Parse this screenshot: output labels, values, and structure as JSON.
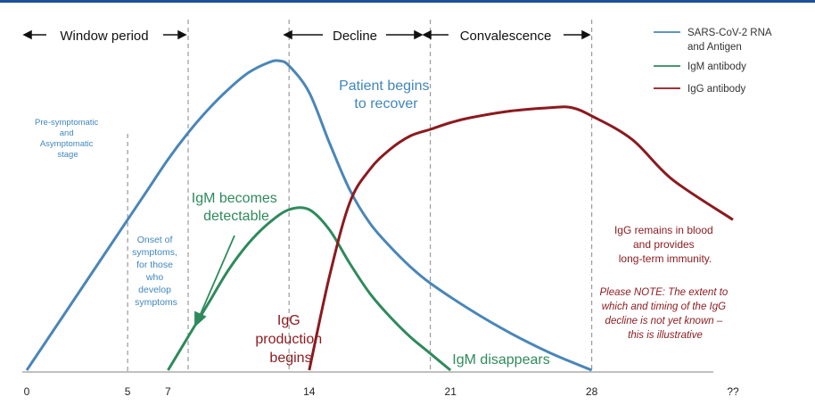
{
  "chart_data": {
    "type": "line",
    "title": "",
    "xlabel": "",
    "ylabel": "",
    "x_ticks": [
      "0",
      "5",
      "7",
      "14",
      "21",
      "28",
      "??"
    ],
    "xlim": [
      0,
      35
    ],
    "ylim": [
      0,
      100
    ],
    "series": [
      {
        "name": "SARS-CoV-2 RNA and Antigen",
        "color": "#4a86b8",
        "x": [
          0,
          2,
          4,
          5,
          6,
          7,
          8,
          9,
          10,
          11,
          12,
          12.5,
          13,
          14,
          15,
          16,
          17,
          18,
          19,
          20,
          22,
          24,
          26,
          28
        ],
        "y": [
          0,
          18,
          36,
          45,
          54,
          63,
          71,
          78,
          84,
          89,
          92,
          92.5,
          91,
          83,
          68,
          54,
          44,
          37,
          31,
          26,
          18,
          11,
          5,
          0
        ]
      },
      {
        "name": "IgM antibody",
        "color": "#2e8a5c",
        "x": [
          7,
          8,
          9,
          10,
          11,
          12,
          13,
          14,
          15,
          16,
          17,
          18,
          19,
          20,
          21
        ],
        "y": [
          0,
          10,
          20,
          30,
          38,
          44,
          48,
          48,
          42,
          32,
          23,
          16,
          10,
          5,
          0
        ]
      },
      {
        "name": "IgG antibody",
        "color": "#8b1a1f",
        "x": [
          14,
          15,
          16,
          17,
          18,
          19,
          20,
          21,
          22,
          24,
          26,
          27,
          28,
          30,
          32,
          35
        ],
        "y": [
          0,
          28,
          50,
          60,
          66,
          70,
          72,
          74,
          75.5,
          77.5,
          78.5,
          78.5,
          76,
          69,
          57,
          45
        ]
      }
    ],
    "phases": [
      {
        "label": "Window period"
      },
      {
        "label": "Decline"
      },
      {
        "label": "Convalescence"
      }
    ],
    "annotations": [
      {
        "lines": [
          "Pre-symptomatic",
          "and",
          "Asymptomatic",
          "stage"
        ]
      },
      {
        "lines": [
          "Onset of",
          "symptoms,",
          "for those",
          "who",
          "develop",
          "symptoms"
        ]
      },
      {
        "lines": [
          "Patient begins",
          "to recover"
        ]
      },
      {
        "lines": [
          "IgM becomes",
          "detectable"
        ]
      },
      {
        "lines": [
          "IgG",
          "production",
          "begins"
        ]
      },
      {
        "lines": [
          "IgM disappears"
        ]
      },
      {
        "lines": [
          "IgG remains in blood",
          "and provides",
          "long-term immunity."
        ]
      },
      {
        "lines": [
          "Please NOTE: The extent to",
          "which and timing of the IgG",
          "decline is not yet known –",
          "this is illustrative"
        ]
      }
    ],
    "legend": [
      {
        "lines": [
          "SARS-CoV-2 RNA",
          "and Antigen"
        ],
        "color": "#4a86b8"
      },
      {
        "lines": [
          "IgM antibody"
        ],
        "color": "#2e8a5c"
      },
      {
        "lines": [
          "IgG antibody"
        ],
        "color": "#8b1a1f"
      }
    ],
    "legend_position": "top-right"
  }
}
